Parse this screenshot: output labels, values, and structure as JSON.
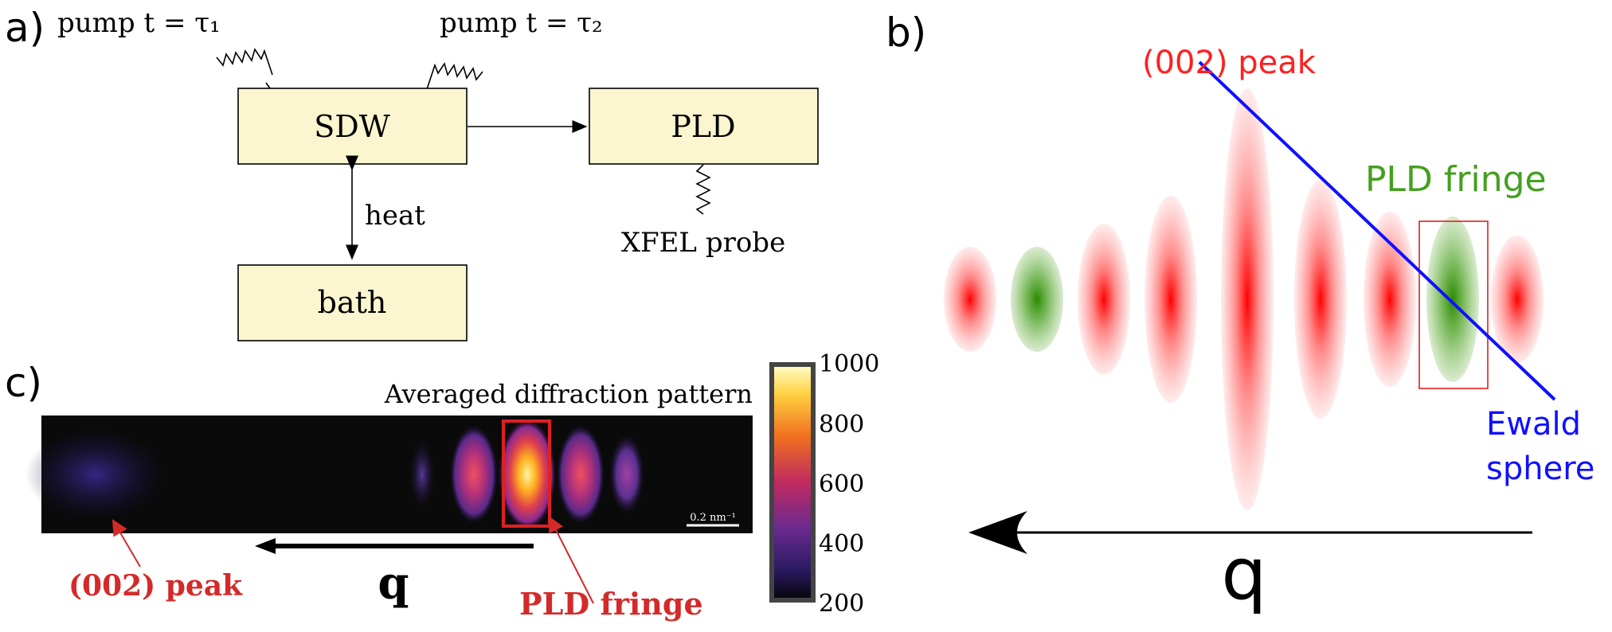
{
  "panel_a": {
    "label": "a)",
    "pump1": "pump t = τ₁",
    "pump2": "pump t = τ₂",
    "sdw": "SDW",
    "pld": "PLD",
    "bath": "bath",
    "heat": "heat",
    "probe": "XFEL probe"
  },
  "panel_b": {
    "label": "b)",
    "peak_label": "(002) peak",
    "fringe_label": "PLD fringe",
    "ewald_line1": "Ewald",
    "ewald_line2": "sphere",
    "q_label": "q"
  },
  "panel_c": {
    "label": "c)",
    "title": "Averaged diffraction pattern",
    "scale_bar": "0.2 nm⁻¹",
    "peak_label": "(002) peak",
    "fringe_label": "PLD fringe",
    "q_label": "q",
    "colorbar_ticks": [
      "1000",
      "800",
      "600",
      "400",
      "200"
    ]
  },
  "colors": {
    "box_fill": "#fbf6cf",
    "red": "#ff2020",
    "green": "#44a020",
    "blue": "#1010ff",
    "annotation_red": "#d42a2a"
  }
}
